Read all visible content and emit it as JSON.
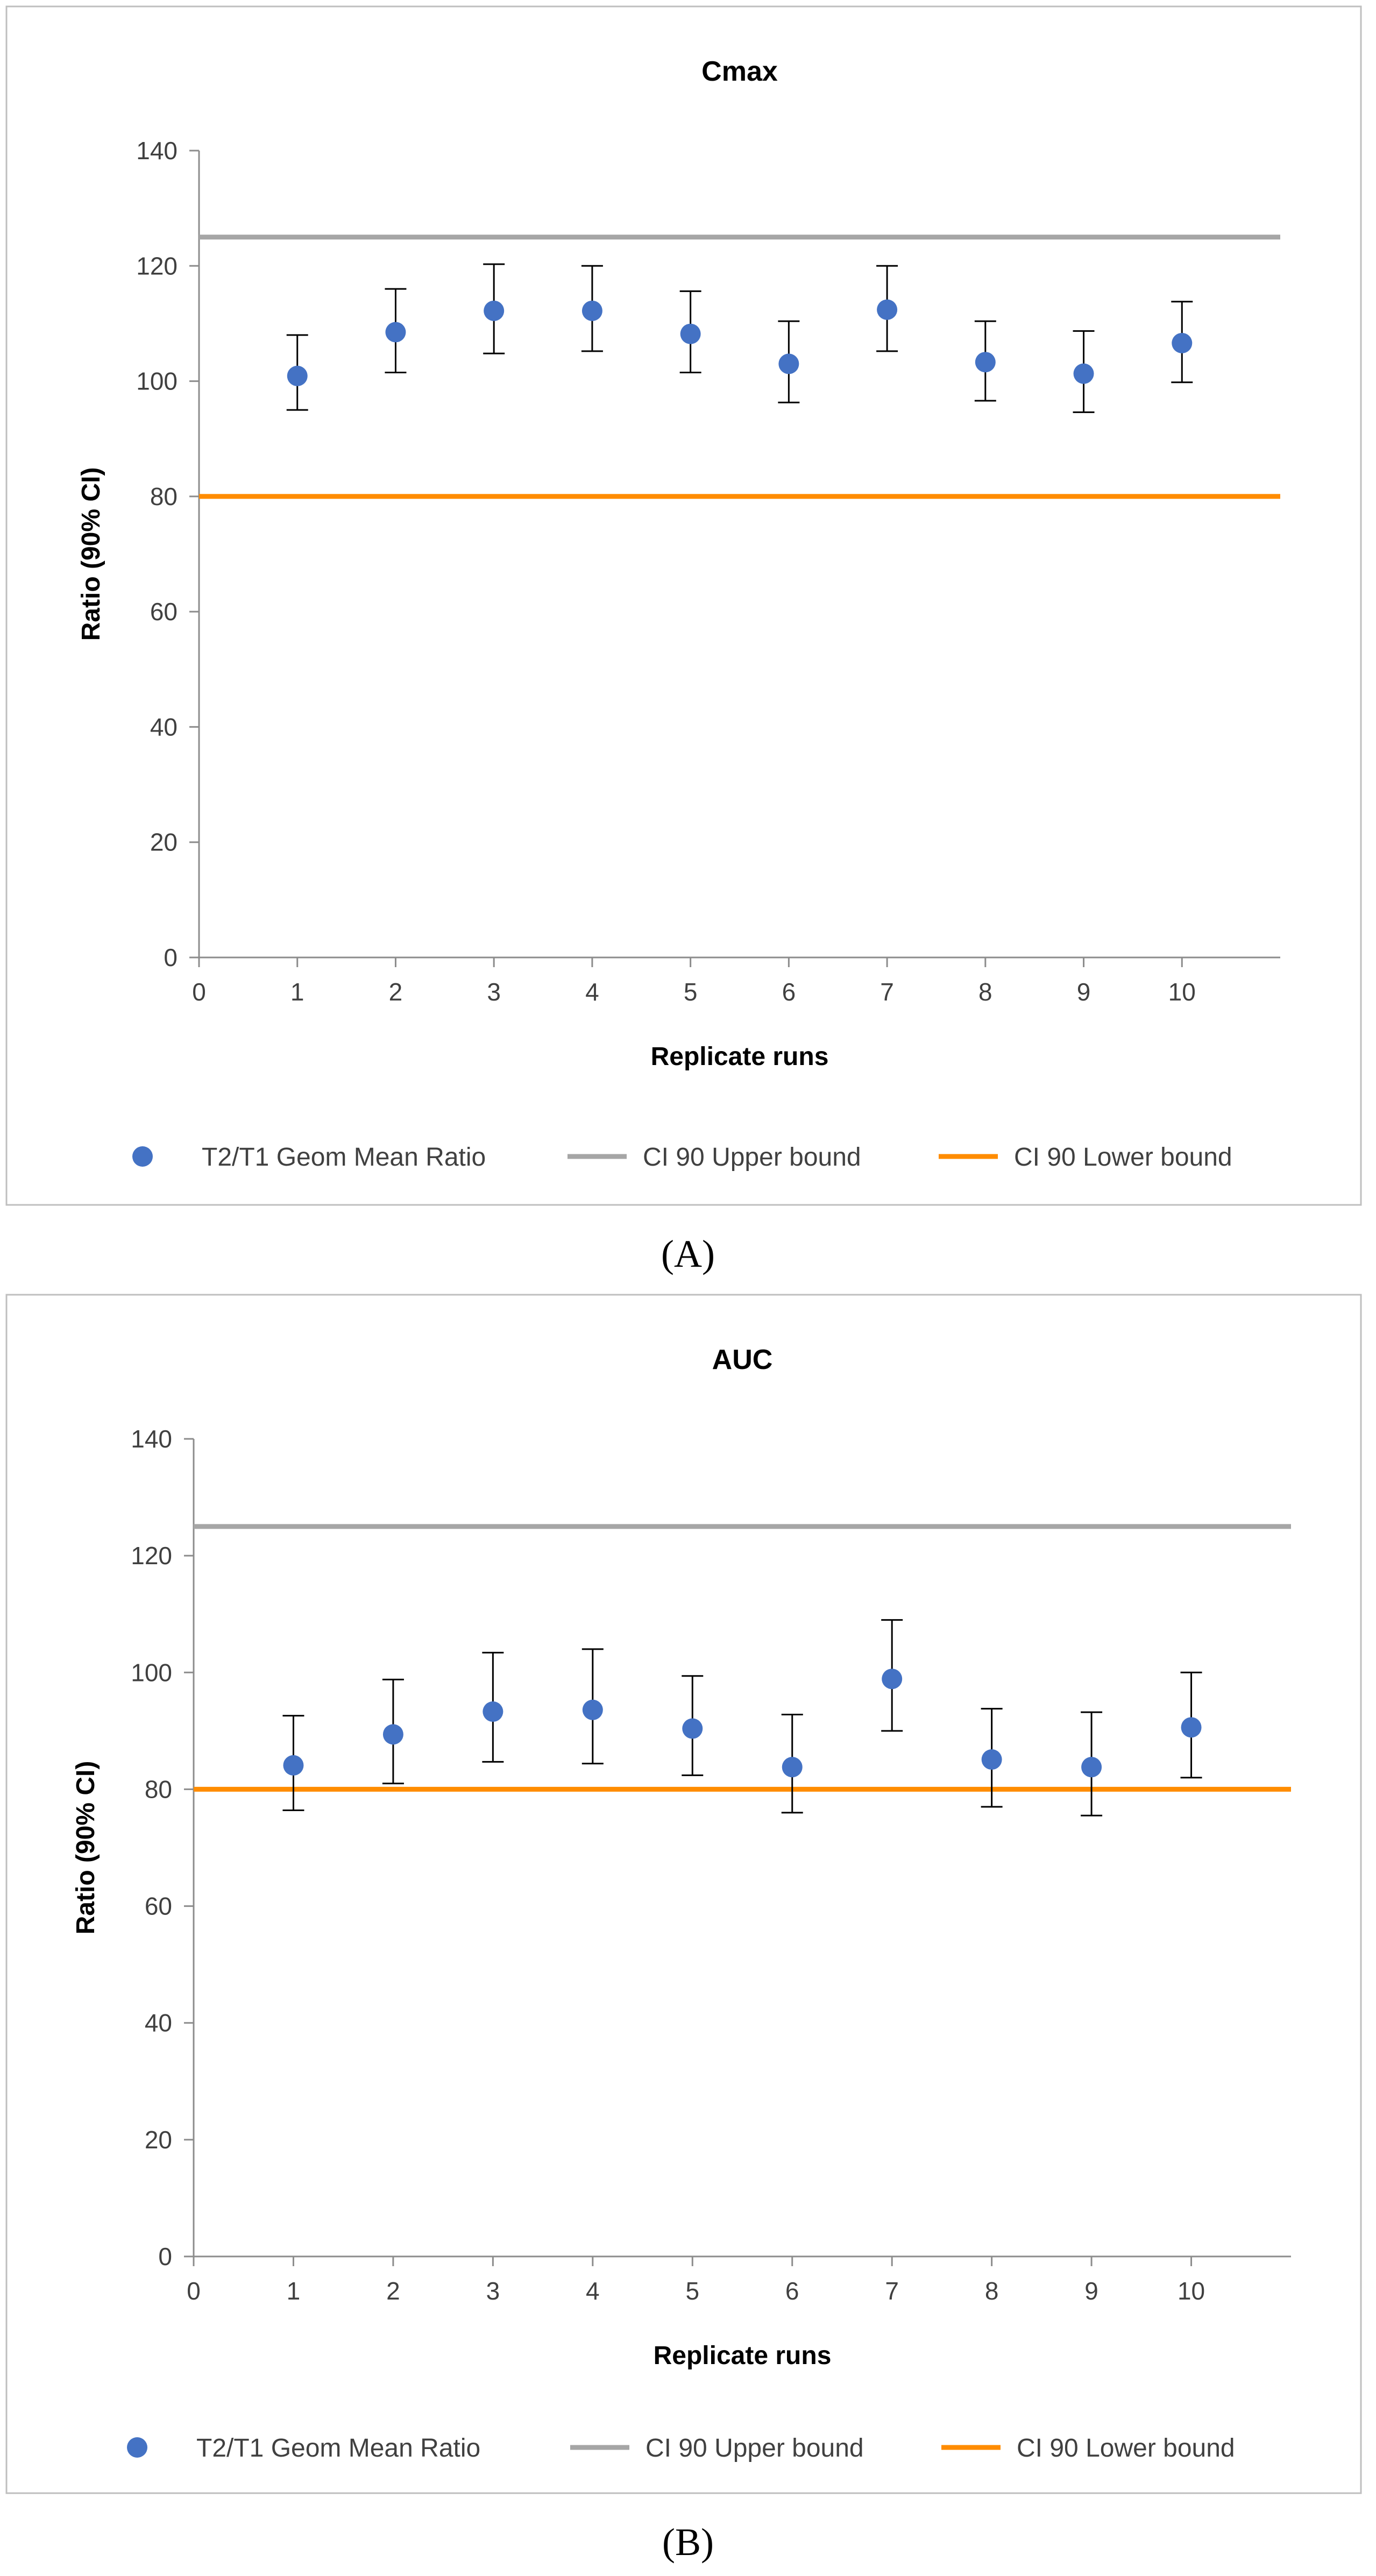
{
  "chart_data": [
    {
      "type": "scatter",
      "title": "Cmax",
      "panel_label": "(A)",
      "xlabel": "Replicate runs",
      "ylabel": "Ratio (90% CI)",
      "xlim": [
        0,
        11
      ],
      "ylim": [
        0,
        140
      ],
      "x_ticks": [
        0,
        1,
        2,
        3,
        4,
        5,
        6,
        7,
        8,
        9,
        10
      ],
      "y_ticks": [
        0,
        20,
        40,
        60,
        80,
        100,
        120,
        140
      ],
      "series": [
        {
          "name": "T2/T1 Geom Mean Ratio",
          "x": [
            1,
            2,
            3,
            4,
            5,
            6,
            7,
            8,
            9,
            10
          ],
          "values": [
            100.9,
            108.5,
            112.2,
            112.2,
            108.2,
            103.0,
            112.4,
            103.3,
            101.3,
            106.6
          ],
          "ci_low": [
            95.0,
            101.5,
            104.8,
            105.2,
            101.5,
            96.3,
            105.2,
            96.6,
            94.6,
            99.8
          ],
          "ci_high": [
            108.0,
            116.0,
            120.3,
            120.0,
            115.6,
            110.4,
            120.0,
            110.4,
            108.7,
            113.8
          ],
          "color": "#4472C4"
        },
        {
          "name": "CI 90 Upper bound",
          "value": 125,
          "color": "#A6A6A6"
        },
        {
          "name": "CI 90 Lower bound",
          "value": 80,
          "color": "#FF8C00"
        }
      ]
    },
    {
      "type": "scatter",
      "title": "AUC",
      "panel_label": "(B)",
      "xlabel": "Replicate runs",
      "ylabel": "Ratio (90% CI)",
      "xlim": [
        0,
        11
      ],
      "ylim": [
        0,
        140
      ],
      "x_ticks": [
        0,
        1,
        2,
        3,
        4,
        5,
        6,
        7,
        8,
        9,
        10
      ],
      "y_ticks": [
        0,
        20,
        40,
        60,
        80,
        100,
        120,
        140
      ],
      "series": [
        {
          "name": "T2/T1 Geom Mean Ratio",
          "x": [
            1,
            2,
            3,
            4,
            5,
            6,
            7,
            8,
            9,
            10
          ],
          "values": [
            84.1,
            89.4,
            93.3,
            93.6,
            90.4,
            83.8,
            98.9,
            85.1,
            83.8,
            90.6
          ],
          "ci_low": [
            76.4,
            81.0,
            84.7,
            84.4,
            82.4,
            76.0,
            90.0,
            77.0,
            75.5,
            82.0
          ],
          "ci_high": [
            92.6,
            98.8,
            103.4,
            104.0,
            99.4,
            92.8,
            109.0,
            93.8,
            93.2,
            100.0
          ],
          "color": "#4472C4"
        },
        {
          "name": "CI 90 Upper bound",
          "value": 125,
          "color": "#A6A6A6"
        },
        {
          "name": "CI 90 Lower bound",
          "value": 80,
          "color": "#FF8C00"
        }
      ]
    }
  ]
}
